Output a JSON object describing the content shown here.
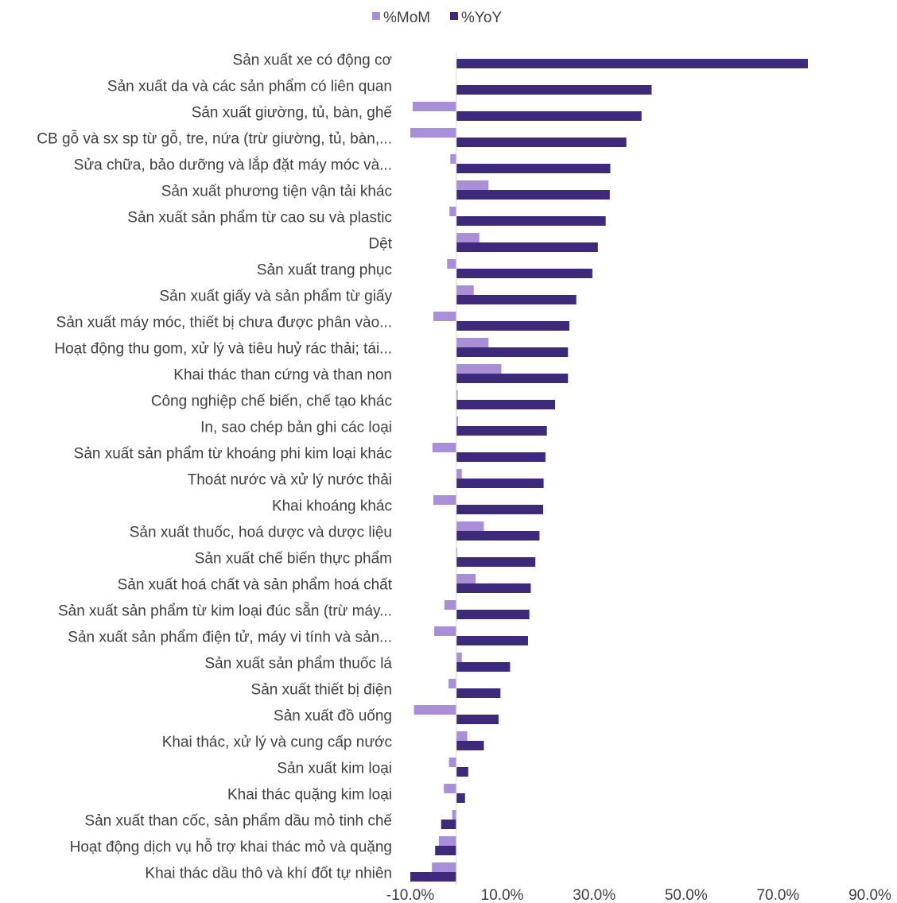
{
  "chart_data": {
    "type": "bar",
    "orientation": "horizontal",
    "title": "",
    "xlabel": "",
    "ylabel": "",
    "xlim": [
      -10,
      90
    ],
    "x_ticks": [
      "-10.0%",
      "10.0%",
      "30.0%",
      "50.0%",
      "70.0%",
      "90.0%"
    ],
    "x_tick_values": [
      -10,
      10,
      30,
      50,
      70,
      90
    ],
    "grid": false,
    "legend_position": "top-center",
    "categories": [
      "Sản xuất xe có động cơ",
      "Sản xuất da và các sản phẩm có liên quan",
      "Sản xuất giường, tủ, bàn, ghế",
      "CB gỗ và sx sp từ gỗ, tre, nứa (trừ giường, tủ, bàn,...",
      "Sửa chữa, bảo dưỡng và lắp đặt máy móc và...",
      "Sản xuất phương tiện vận tải khác",
      "Sản xuất sản phẩm từ cao su và plastic",
      "Dệt",
      "Sản xuất trang phục",
      "Sản xuất giấy và sản phẩm từ giấy",
      "Sản xuất máy móc, thiết bị chưa được phân vào...",
      "Hoạt động thu gom, xử lý và tiêu huỷ rác thải; tái...",
      "Khai thác than cứng và than non",
      "Công nghiệp chế biến, chế tạo khác",
      "In, sao chép bản ghi các loại",
      "Sản xuất sản phẩm từ khoáng phi kim loại khác",
      "Thoát nước và xử lý nước thải",
      "Khai khoáng khác",
      "Sản xuất thuốc, hoá dược và dược liệu",
      "Sản xuất chế biến thực phẩm",
      "Sản xuất hoá chất và sản phẩm hoá chất",
      "Sản xuất sản phẩm từ kim loại đúc sẵn (trừ máy...",
      "Sản xuất sản phẩm điện tử, máy vi tính và sản...",
      "Sản xuất sản phẩm thuốc lá",
      "Sản xuất thiết bị điện",
      "Sản xuất đồ uống",
      "Khai thác, xử lý và cung cấp nước",
      "Sản xuất kim loại",
      "Khai thác quặng kim loại",
      "Sản xuất than cốc, sản phẩm dầu mỏ tinh chế",
      "Hoạt động dịch vụ hỗ trợ khai thác mỏ và quặng",
      "Khai thác dầu thô và khí đốt tự nhiên"
    ],
    "series": [
      {
        "name": "%MoM",
        "color": "#a98fd8",
        "values": [
          0,
          0,
          -9.5,
          -10,
          -1.3,
          7,
          -1.5,
          5,
          -2,
          3.8,
          -5,
          7,
          9.8,
          0.3,
          0.4,
          -5.2,
          1.2,
          -5,
          6,
          0.2,
          4.2,
          -2.6,
          -4.8,
          1.2,
          -1.7,
          -9.2,
          2.4,
          -1.6,
          -2.7,
          -0.9,
          -3.8,
          -5.3
        ]
      },
      {
        "name": "%YoY",
        "color": "#3d2a7a",
        "values": [
          76.5,
          42.5,
          40.3,
          37,
          33.5,
          33.4,
          32.5,
          30.8,
          29.6,
          26.1,
          24.6,
          24.3,
          24.3,
          21.5,
          19.7,
          19.4,
          19,
          18.9,
          18.1,
          17.2,
          16.2,
          15.9,
          15.6,
          11.7,
          9.6,
          9.2,
          6,
          2.6,
          1.9,
          -3.3,
          -4.6,
          -10
        ]
      }
    ]
  }
}
